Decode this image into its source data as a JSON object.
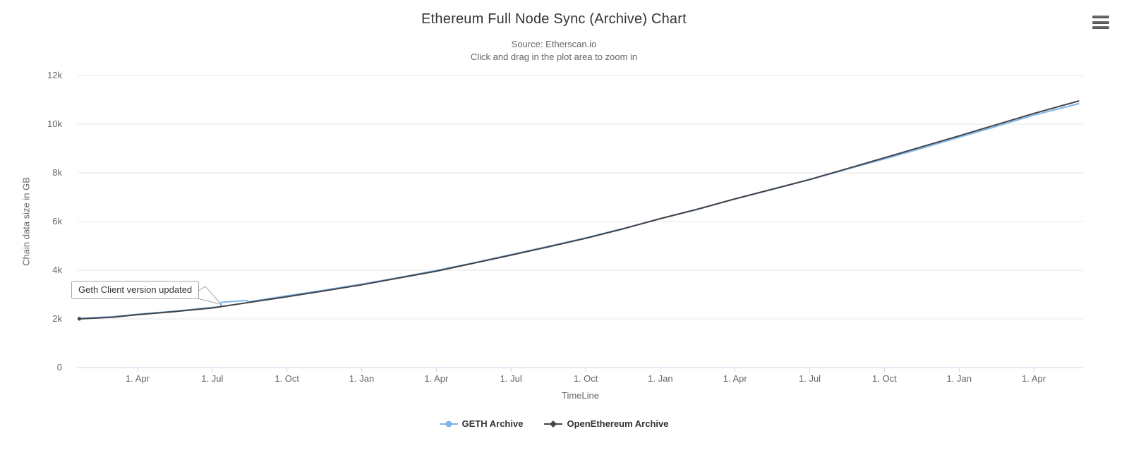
{
  "chart_data": {
    "type": "line",
    "title": "Ethereum Full Node Sync (Archive) Chart",
    "subtitle": "Source: Etherscan.io",
    "subtitle2": "Click and drag in the plot area to zoom in",
    "xlabel": "TimeLine",
    "ylabel": "Chain data size in GB",
    "ylim": [
      0,
      12000
    ],
    "grid": "horizontal-only",
    "legend_position": "bottom-center",
    "colors": {
      "background": "#ffffff",
      "grid": "#e6e6e6",
      "axis_line": "#ccd6eb",
      "labels": "#666666",
      "title": "#333333",
      "annotation_border": "#a6a6a6",
      "menu_icon": "#5f5f5f"
    },
    "icons": {
      "menu": "hamburger-menu-icon"
    },
    "y_ticks": [
      {
        "label": "0",
        "value": 0
      },
      {
        "label": "2k",
        "value": 2000
      },
      {
        "label": "4k",
        "value": 4000
      },
      {
        "label": "6k",
        "value": 6000
      },
      {
        "label": "8k",
        "value": 8000
      },
      {
        "label": "10k",
        "value": 10000
      },
      {
        "label": "12k",
        "value": 12000
      }
    ],
    "x_ticks": [
      {
        "label": "1. Apr",
        "m": 0
      },
      {
        "label": "1. Jul",
        "m": 3
      },
      {
        "label": "1. Oct",
        "m": 6
      },
      {
        "label": "1. Jan",
        "m": 9
      },
      {
        "label": "1. Apr",
        "m": 12
      },
      {
        "label": "1. Jul",
        "m": 15
      },
      {
        "label": "1. Oct",
        "m": 18
      },
      {
        "label": "1. Jan",
        "m": 21
      },
      {
        "label": "1. Apr",
        "m": 24
      },
      {
        "label": "1. Jul",
        "m": 27
      },
      {
        "label": "1. Oct",
        "m": 30
      },
      {
        "label": "1. Jan",
        "m": 33
      },
      {
        "label": "1. Apr",
        "m": 36
      }
    ],
    "annotation": {
      "text": "Geth Client version updated",
      "target_m": 3.36,
      "target_value_gb": 2680
    },
    "series": [
      {
        "name": "GETH Archive",
        "color": "#7cb5ec",
        "marker": "circle",
        "points": [
          [
            -2.34,
            2020
          ],
          [
            -1,
            2090
          ],
          [
            0,
            2190
          ],
          [
            1.5,
            2320
          ],
          [
            3,
            2470
          ],
          [
            3.34,
            2500
          ],
          [
            3.36,
            2680
          ],
          [
            4.38,
            2760
          ],
          [
            4.44,
            2700
          ],
          [
            6,
            2950
          ],
          [
            7.5,
            3180
          ],
          [
            9,
            3430
          ],
          [
            10.5,
            3700
          ],
          [
            12,
            3990
          ],
          [
            13.5,
            4300
          ],
          [
            15,
            4640
          ],
          [
            16.5,
            4980
          ],
          [
            18,
            5330
          ],
          [
            19.5,
            5710
          ],
          [
            21,
            6120
          ],
          [
            22.5,
            6500
          ],
          [
            24,
            6930
          ],
          [
            25.5,
            7320
          ],
          [
            27,
            7720
          ],
          [
            28.5,
            8150
          ],
          [
            30,
            8570
          ],
          [
            31.5,
            9010
          ],
          [
            33,
            9460
          ],
          [
            34.5,
            9910
          ],
          [
            36,
            10370
          ],
          [
            37.8,
            10840
          ]
        ]
      },
      {
        "name": "OpenEthereum Archive",
        "color": "#434348",
        "marker": "diamond",
        "points": [
          [
            -2.34,
            2000
          ],
          [
            -1,
            2070
          ],
          [
            0,
            2175
          ],
          [
            1.5,
            2300
          ],
          [
            3,
            2450
          ],
          [
            4.5,
            2680
          ],
          [
            6,
            2910
          ],
          [
            7.5,
            3150
          ],
          [
            9,
            3400
          ],
          [
            10.5,
            3680
          ],
          [
            12,
            3960
          ],
          [
            13.5,
            4290
          ],
          [
            15,
            4620
          ],
          [
            16.5,
            4960
          ],
          [
            18,
            5310
          ],
          [
            19.5,
            5700
          ],
          [
            21,
            6120
          ],
          [
            22.5,
            6510
          ],
          [
            24,
            6930
          ],
          [
            25.5,
            7330
          ],
          [
            27,
            7730
          ],
          [
            28.5,
            8170
          ],
          [
            30,
            8620
          ],
          [
            31.5,
            9070
          ],
          [
            33,
            9520
          ],
          [
            34.5,
            9980
          ],
          [
            36,
            10440
          ],
          [
            37.8,
            10950
          ]
        ]
      }
    ]
  }
}
